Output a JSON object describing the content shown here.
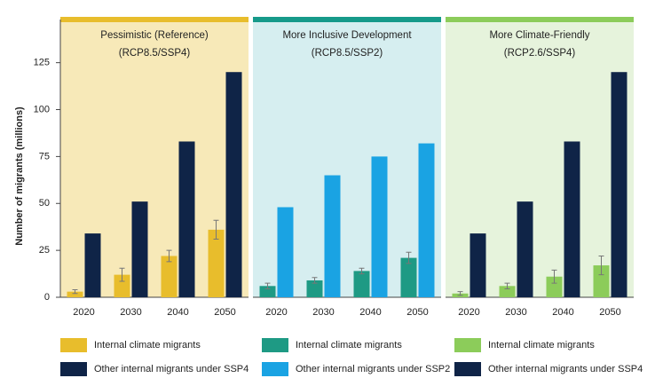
{
  "chart_data": [
    {
      "type": "bar",
      "title": "Pessimistic (Reference)",
      "subtitle": "(RCP8.5/SSP4)",
      "ylabel": "Number of migrants (millions)",
      "categories": [
        "2020",
        "2030",
        "2040",
        "2050"
      ],
      "series": [
        {
          "name": "Internal climate migrants",
          "color": "#e8bd2c",
          "values": [
            3,
            12,
            22,
            36
          ],
          "errors": [
            1,
            3.5,
            3,
            5
          ]
        },
        {
          "name": "Other internal migrants under SSP4",
          "color": "#0f2447",
          "values": [
            34,
            51,
            83,
            120
          ]
        }
      ],
      "header_color": "#e8bd2c",
      "background": "#f7e9b8",
      "ylim": [
        0,
        148
      ],
      "yticks": [
        0,
        25,
        50,
        75,
        100,
        125
      ]
    },
    {
      "type": "bar",
      "title": "More Inclusive Development",
      "subtitle": "(RCP8.5/SSP2)",
      "categories": [
        "2020",
        "2030",
        "2040",
        "2050"
      ],
      "series": [
        {
          "name": "Internal climate migrants",
          "color": "#1e9a84",
          "values": [
            6,
            9,
            14,
            21
          ],
          "errors": [
            1.5,
            1.5,
            1.5,
            3
          ]
        },
        {
          "name": "Other internal migrants under SSP2",
          "color": "#1aa3e3",
          "values": [
            48,
            65,
            75,
            82
          ]
        }
      ],
      "header_color": "#169a8a",
      "background": "#d6eef0",
      "ylim": [
        0,
        148
      ]
    },
    {
      "type": "bar",
      "title": "More Climate-Friendly",
      "subtitle": "(RCP2.6/SSP4)",
      "categories": [
        "2020",
        "2030",
        "2040",
        "2050"
      ],
      "series": [
        {
          "name": "Internal climate migrants",
          "color": "#8ccc5a",
          "values": [
            2,
            6,
            11,
            17
          ],
          "errors": [
            1,
            1.5,
            3.5,
            5
          ]
        },
        {
          "name": "Other internal migrants under SSP4",
          "color": "#0f2447",
          "values": [
            34,
            51,
            83,
            120
          ]
        }
      ],
      "header_color": "#8ccc5a",
      "background": "#e6f3dc",
      "ylim": [
        0,
        148
      ]
    }
  ]
}
